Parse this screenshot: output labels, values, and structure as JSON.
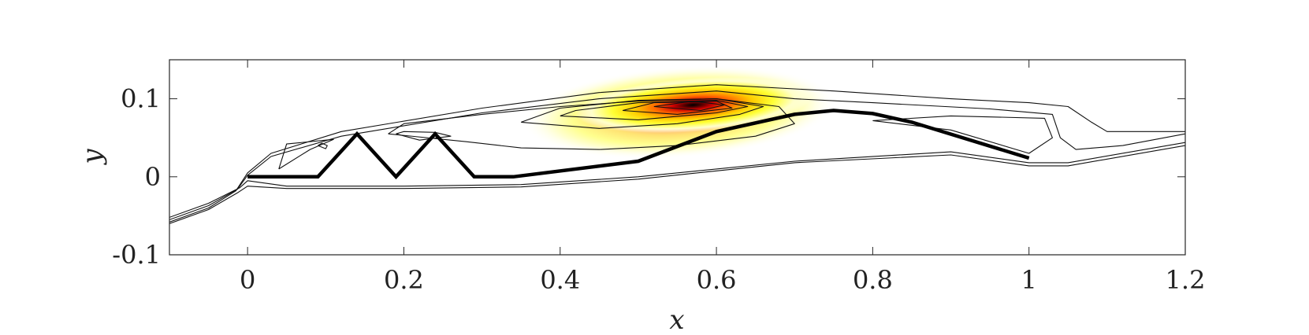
{
  "chart_data": {
    "type": "heatmap",
    "title": "",
    "xlabel": "x",
    "ylabel": "y",
    "xlim": [
      -0.1,
      1.2
    ],
    "ylim": [
      -0.1,
      0.15
    ],
    "grid": false,
    "x_ticks": [
      {
        "value": 0,
        "label": "0"
      },
      {
        "value": 0.2,
        "label": "0.2"
      },
      {
        "value": 0.4,
        "label": "0.4"
      },
      {
        "value": 0.6,
        "label": "0.6"
      },
      {
        "value": 0.8,
        "label": "0.8"
      },
      {
        "value": 1,
        "label": "1"
      },
      {
        "value": 1.2,
        "label": "1.2"
      }
    ],
    "y_ticks": [
      {
        "value": 0.1,
        "label": "0.1"
      },
      {
        "value": 0,
        "label": "0"
      },
      {
        "value": -0.1,
        "label": "-0.1"
      }
    ],
    "colormap": [
      "#ffffcc",
      "#ffff33",
      "#ffcc00",
      "#ff6600",
      "#cc0000",
      "#330000"
    ],
    "field_peak": {
      "x": 0.57,
      "y": 0.092
    },
    "body_outline": [
      [
        0,
        0
      ],
      [
        0.09,
        0
      ],
      [
        0.14,
        0.055
      ],
      [
        0.19,
        0
      ],
      [
        0.24,
        0.055
      ],
      [
        0.29,
        0
      ],
      [
        0.34,
        0
      ],
      [
        0.5,
        0.02
      ],
      [
        0.6,
        0.058
      ],
      [
        0.7,
        0.08
      ],
      [
        0.75,
        0.085
      ],
      [
        0.8,
        0.081
      ],
      [
        0.85,
        0.07
      ],
      [
        1.0,
        0.024
      ]
    ],
    "contour_lines": [
      [
        [
          -0.1,
          -0.058
        ],
        [
          -0.05,
          -0.04
        ],
        [
          -0.015,
          -0.018
        ],
        [
          0.0,
          0.005
        ],
        [
          0.03,
          0.03
        ],
        [
          0.12,
          0.058
        ],
        [
          0.3,
          0.088
        ],
        [
          0.45,
          0.108
        ],
        [
          0.6,
          0.118
        ],
        [
          0.75,
          0.11
        ],
        [
          0.9,
          0.1
        ],
        [
          1.0,
          0.095
        ],
        [
          1.05,
          0.09
        ],
        [
          1.08,
          0.07
        ],
        [
          1.1,
          0.058
        ],
        [
          1.2,
          0.058
        ]
      ],
      [
        [
          -0.1,
          -0.055
        ],
        [
          -0.05,
          -0.037
        ],
        [
          -0.013,
          -0.016
        ],
        [
          0.0,
          0.002
        ],
        [
          0.03,
          0.026
        ],
        [
          0.12,
          0.052
        ],
        [
          0.3,
          0.082
        ],
        [
          0.45,
          0.1
        ],
        [
          0.6,
          0.11
        ],
        [
          0.7,
          0.1
        ],
        [
          0.8,
          0.095
        ],
        [
          0.95,
          0.087
        ],
        [
          1.03,
          0.08
        ],
        [
          1.04,
          0.05
        ],
        [
          1.06,
          0.035
        ],
        [
          1.12,
          0.04
        ],
        [
          1.2,
          0.055
        ]
      ],
      [
        [
          -0.1,
          -0.052
        ],
        [
          -0.05,
          -0.034
        ],
        [
          -0.01,
          -0.014
        ],
        [
          0.0,
          -0.005
        ],
        [
          0.05,
          -0.012
        ],
        [
          0.2,
          -0.012
        ],
        [
          0.35,
          -0.01
        ],
        [
          0.5,
          0.0
        ],
        [
          0.7,
          0.02
        ],
        [
          0.9,
          0.032
        ],
        [
          1.0,
          0.018
        ],
        [
          1.05,
          0.018
        ],
        [
          1.2,
          0.044
        ]
      ],
      [
        [
          -0.1,
          -0.06
        ],
        [
          -0.05,
          -0.042
        ],
        [
          -0.012,
          -0.02
        ],
        [
          0.0,
          -0.012
        ],
        [
          0.05,
          -0.015
        ],
        [
          0.2,
          -0.015
        ],
        [
          0.35,
          -0.013
        ],
        [
          0.5,
          -0.003
        ],
        [
          0.7,
          0.018
        ],
        [
          0.9,
          0.028
        ],
        [
          1.0,
          0.014
        ],
        [
          1.05,
          0.014
        ],
        [
          1.2,
          0.04
        ]
      ],
      [
        [
          0.18,
          0.055
        ],
        [
          0.28,
          0.045
        ],
        [
          0.35,
          0.037
        ],
        [
          0.45,
          0.035
        ],
        [
          0.55,
          0.04
        ],
        [
          0.65,
          0.052
        ],
        [
          0.7,
          0.068
        ],
        [
          0.68,
          0.09
        ],
        [
          0.6,
          0.1
        ],
        [
          0.5,
          0.097
        ],
        [
          0.4,
          0.09
        ],
        [
          0.3,
          0.08
        ],
        [
          0.2,
          0.068
        ],
        [
          0.18,
          0.055
        ]
      ],
      [
        [
          0.35,
          0.07
        ],
        [
          0.45,
          0.062
        ],
        [
          0.55,
          0.068
        ],
        [
          0.63,
          0.08
        ],
        [
          0.66,
          0.09
        ],
        [
          0.6,
          0.1
        ],
        [
          0.5,
          0.098
        ],
        [
          0.4,
          0.088
        ],
        [
          0.35,
          0.07
        ]
      ],
      [
        [
          0.4,
          0.078
        ],
        [
          0.5,
          0.073
        ],
        [
          0.6,
          0.082
        ],
        [
          0.64,
          0.09
        ],
        [
          0.6,
          0.098
        ],
        [
          0.5,
          0.095
        ],
        [
          0.42,
          0.085
        ],
        [
          0.4,
          0.078
        ]
      ],
      [
        [
          0.48,
          0.085
        ],
        [
          0.55,
          0.08
        ],
        [
          0.62,
          0.088
        ],
        [
          0.6,
          0.097
        ],
        [
          0.52,
          0.095
        ],
        [
          0.48,
          0.085
        ]
      ],
      [
        [
          0.52,
          0.09
        ],
        [
          0.58,
          0.085
        ],
        [
          0.61,
          0.092
        ],
        [
          0.57,
          0.097
        ],
        [
          0.52,
          0.09
        ]
      ],
      [
        [
          0.04,
          0.01
        ],
        [
          0.08,
          0.035
        ],
        [
          0.11,
          0.048
        ],
        [
          0.05,
          0.042
        ],
        [
          0.04,
          0.01
        ]
      ],
      [
        [
          0.19,
          0.055
        ],
        [
          0.22,
          0.047
        ],
        [
          0.26,
          0.052
        ],
        [
          0.24,
          0.057
        ],
        [
          0.2,
          0.058
        ],
        [
          0.19,
          0.055
        ]
      ],
      [
        [
          0.8,
          0.072
        ],
        [
          0.9,
          0.06
        ],
        [
          1.0,
          0.03
        ],
        [
          1.03,
          0.05
        ],
        [
          1.02,
          0.075
        ],
        [
          0.9,
          0.078
        ],
        [
          0.8,
          0.072
        ]
      ],
      [
        [
          0.09,
          0.04
        ],
        [
          0.1,
          0.036
        ],
        [
          0.102,
          0.04
        ],
        [
          0.095,
          0.043
        ],
        [
          0.09,
          0.04
        ]
      ]
    ]
  }
}
